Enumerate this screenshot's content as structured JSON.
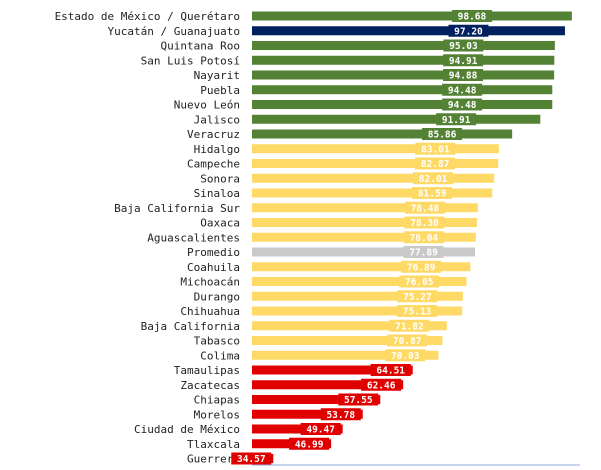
{
  "chart_data": {
    "type": "bar",
    "orientation": "horizontal",
    "grid": false,
    "legend": "none",
    "xlim": [
      30,
      100
    ],
    "categories": [
      "Estado de México / Querétaro",
      "Yucatán / Guanajuato",
      "Quintana Roo",
      "San Luis Potosí",
      "Nayarit",
      "Puebla",
      "Nuevo León",
      "Jalisco",
      "Veracruz",
      "Hidalgo",
      "Campeche",
      "Sonora",
      "Sinaloa",
      "Baja California Sur",
      "Oaxaca",
      "Aguascalientes",
      "Promedio",
      "Coahuila",
      "Michoacán",
      "Durango",
      "Chihuahua",
      "Baja California",
      "Tabasco",
      "Colima",
      "Tamaulipas",
      "Zacatecas",
      "Chiapas",
      "Morelos",
      "Ciudad de México",
      "Tlaxcala",
      "Guerrero"
    ],
    "values": [
      98.68,
      97.2,
      95.03,
      94.91,
      94.88,
      94.48,
      94.48,
      91.91,
      85.86,
      83.01,
      82.87,
      82.01,
      81.59,
      78.48,
      78.3,
      78.04,
      77.89,
      76.89,
      76.05,
      75.27,
      75.13,
      71.82,
      70.87,
      70.03,
      64.51,
      62.46,
      57.55,
      53.78,
      49.47,
      46.99,
      34.57
    ],
    "value_labels": [
      "98.68",
      "97.20",
      "95.03",
      "94.91",
      "94.88",
      "94.48",
      "94.48",
      "91.91",
      "85.86",
      "83.01",
      "82.87",
      "82.01",
      "81.59",
      "78.48",
      "78.30",
      "78.04",
      "77.89",
      "76.89",
      "76.05",
      "75.27",
      "75.13",
      "71.82",
      "70.87",
      "70.03",
      "64.51",
      "62.46",
      "57.55",
      "53.78",
      "49.47",
      "46.99",
      "34.57"
    ],
    "bar_colors": [
      "#548235",
      "#002060",
      "#548235",
      "#548235",
      "#548235",
      "#548235",
      "#548235",
      "#548235",
      "#548235",
      "#FFD966",
      "#FFD966",
      "#FFD966",
      "#FFD966",
      "#FFD966",
      "#FFD966",
      "#FFD966",
      "#C9C9C9",
      "#FFD966",
      "#FFD966",
      "#FFD966",
      "#FFD966",
      "#FFD966",
      "#FFD966",
      "#FFD966",
      "#E00000",
      "#E00000",
      "#E00000",
      "#E00000",
      "#E00000",
      "#E00000",
      "#E00000"
    ],
    "axis_color": "#8eaadb"
  }
}
